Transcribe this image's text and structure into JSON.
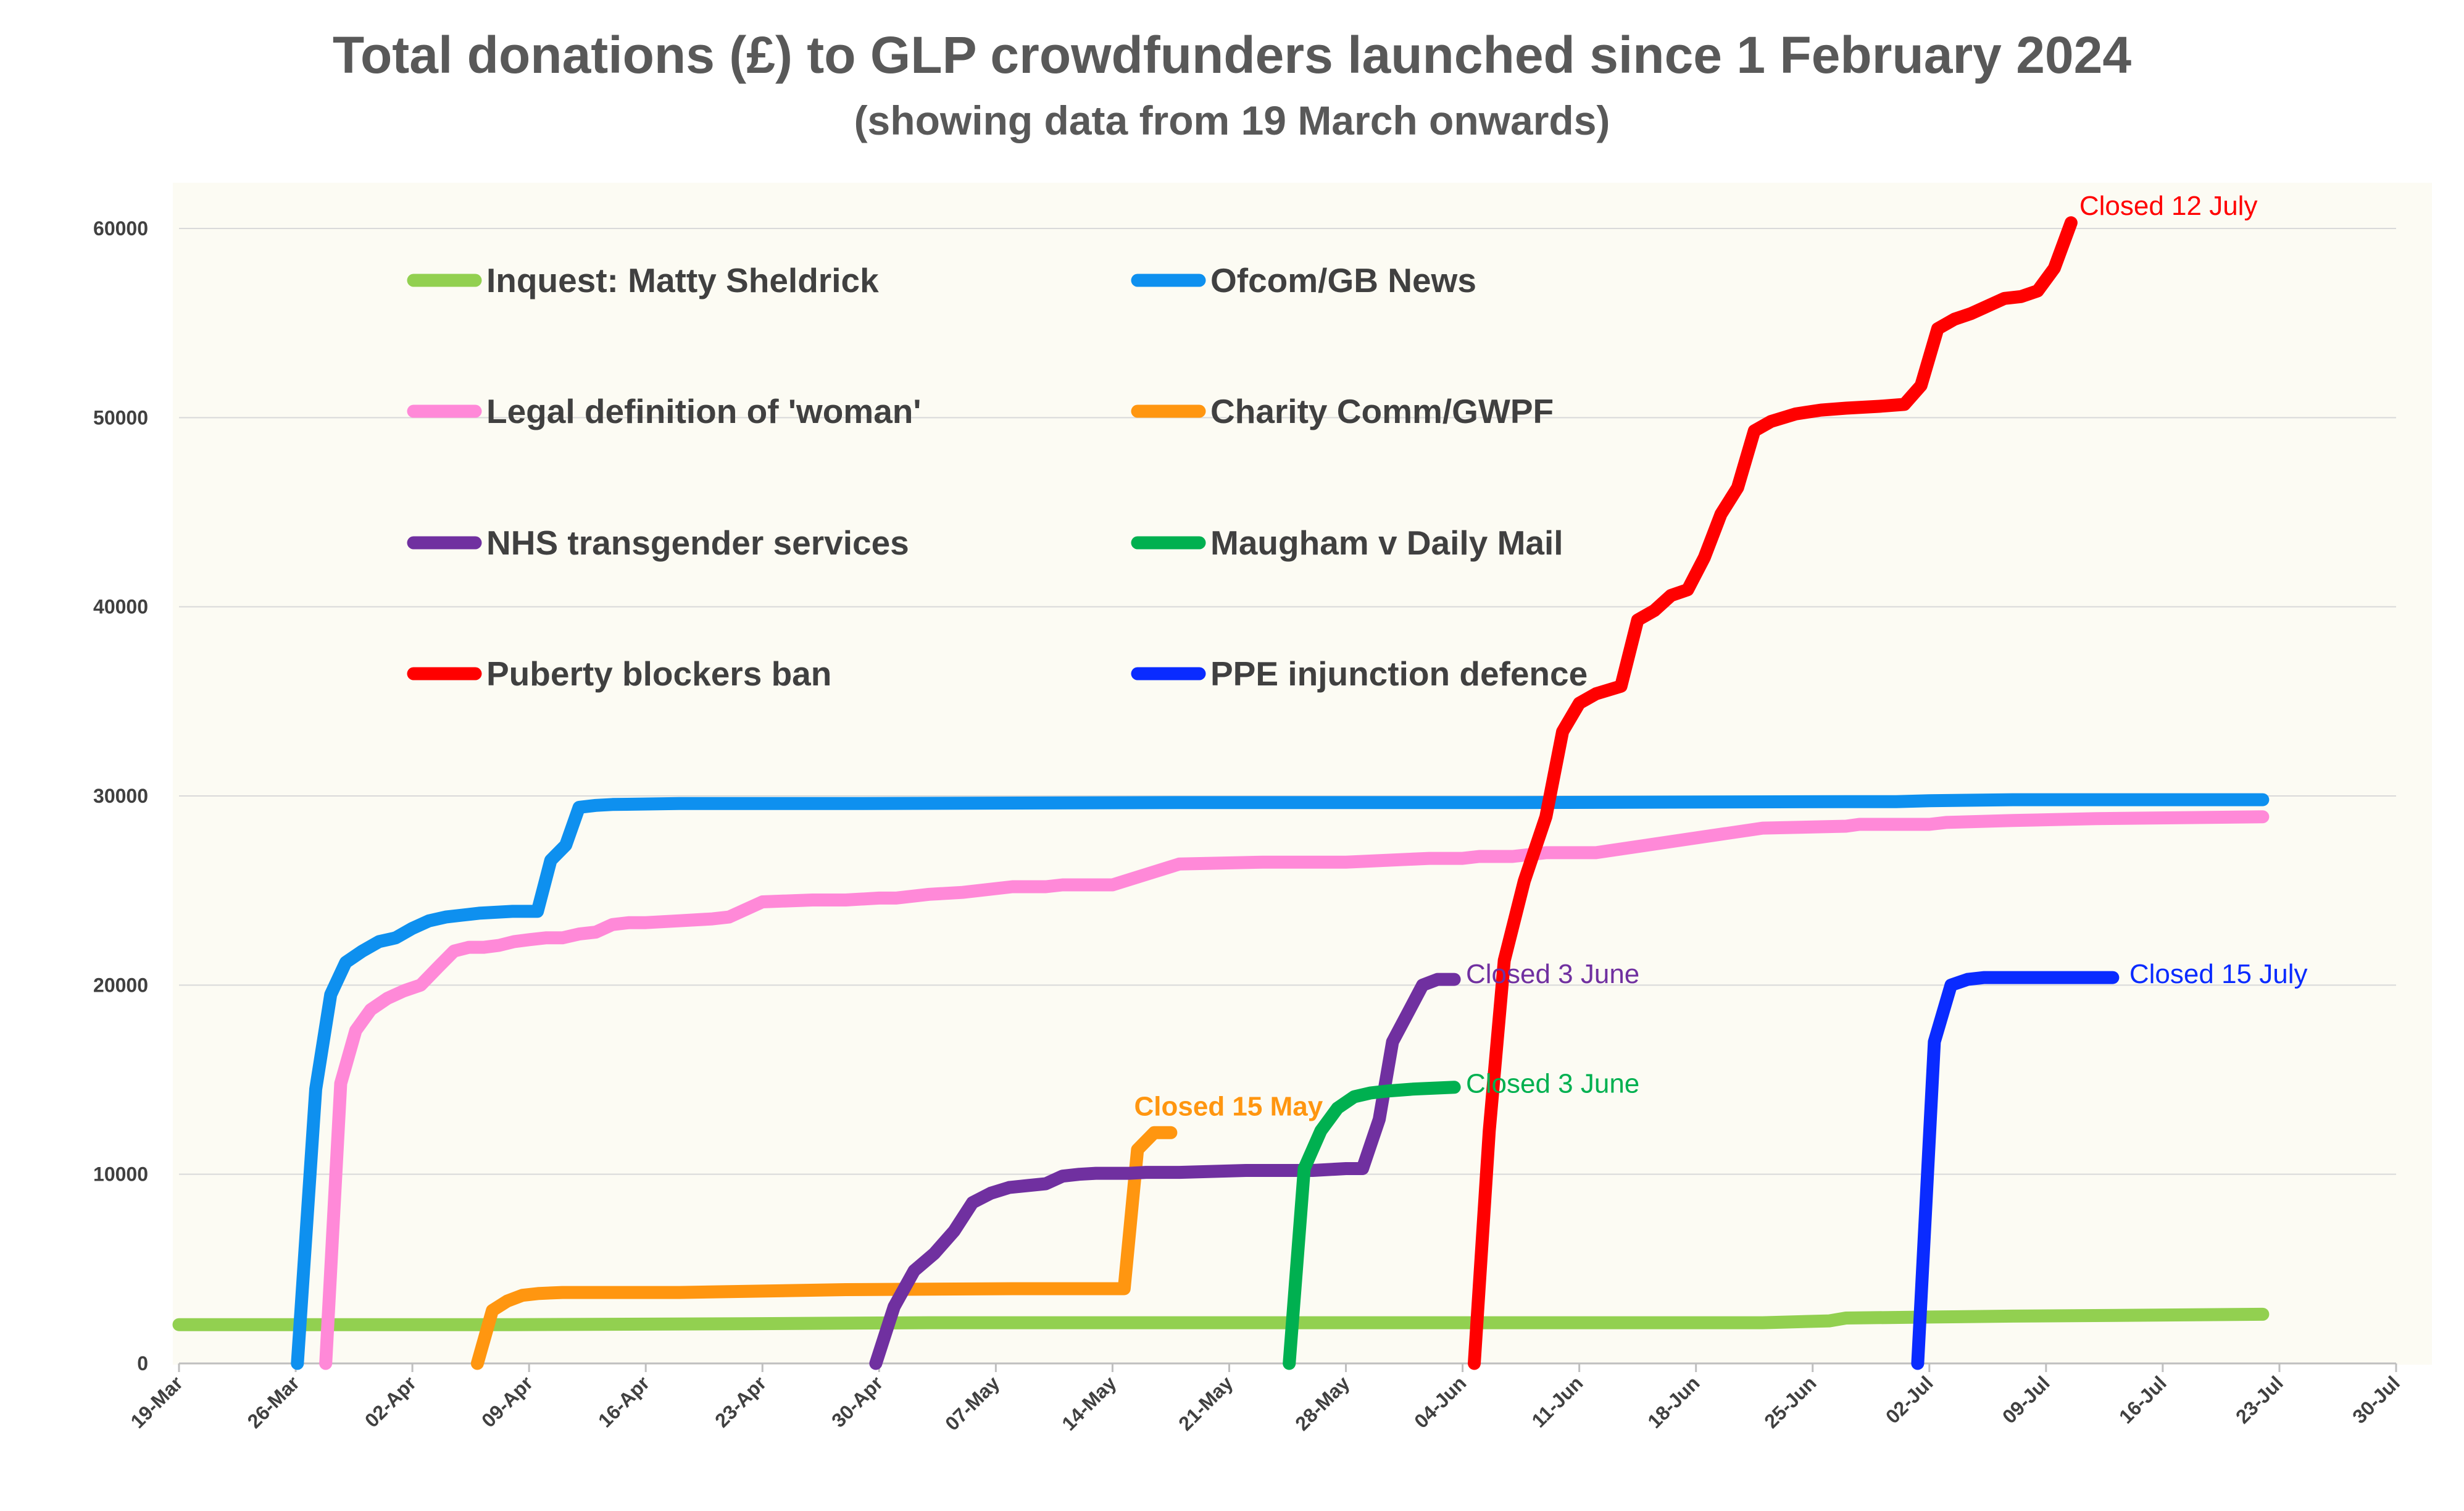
{
  "chart_data": {
    "type": "line",
    "title": "Total donations (£) to GLP crowdfunders launched since 1 February 2024",
    "subtitle": "(showing data from 19 March onwards)",
    "xlabel": "",
    "ylabel": "",
    "x_range_days": [
      0,
      133
    ],
    "ylim": [
      0,
      60000
    ],
    "y_ticks": [
      0,
      10000,
      20000,
      30000,
      40000,
      50000,
      60000
    ],
    "y_tick_labels": [
      "0",
      "10000",
      "20000",
      "30000",
      "40000",
      "50000",
      "60000"
    ],
    "x_ticks_days": [
      0,
      7,
      14,
      21,
      28,
      35,
      42,
      49,
      56,
      63,
      70,
      77,
      84,
      91,
      98,
      105,
      112,
      119,
      126,
      133
    ],
    "x_tick_labels": [
      "19-Mar",
      "26-Mar",
      "02-Apr",
      "09-Apr",
      "16-Apr",
      "23-Apr",
      "30-Apr",
      "07-May",
      "14-May",
      "21-May",
      "28-May",
      "04-Jun",
      "11-Jun",
      "18-Jun",
      "25-Jun",
      "02-Jul",
      "09-Jul",
      "16-Jul",
      "23-Jul",
      "30-Jul"
    ],
    "x_unit": "days since 19-Mar",
    "grid": "horizontal",
    "legend_position": "upper-left, inside plot, two columns",
    "series": [
      {
        "name": "Inquest: Matty Sheldrick",
        "color": "#92d050",
        "x": [
          0,
          20,
          34,
          45,
          60,
          70,
          80,
          95,
          99,
          100,
          105,
          110,
          118,
          125
        ],
        "y": [
          2050,
          2050,
          2100,
          2150,
          2150,
          2150,
          2150,
          2150,
          2250,
          2400,
          2450,
          2500,
          2550,
          2600
        ]
      },
      {
        "name": "Ofcom/GB News",
        "color": "#0e90ef",
        "x": [
          7.1,
          8.2,
          9.1,
          10,
          11,
          12,
          13,
          14,
          15,
          16,
          17,
          18,
          19,
          20,
          21.5,
          22.3,
          23.2,
          24,
          25,
          26,
          30,
          40,
          60,
          80,
          100,
          103,
          105,
          110,
          120,
          125
        ],
        "y": [
          0,
          14500,
          19500,
          21200,
          21800,
          22300,
          22500,
          23000,
          23400,
          23600,
          23700,
          23800,
          23850,
          23900,
          23900,
          26600,
          27400,
          29400,
          29500,
          29550,
          29600,
          29600,
          29650,
          29650,
          29700,
          29700,
          29750,
          29800,
          29800,
          29800
        ]
      },
      {
        "name": "Legal definition of 'woman'",
        "color": "#ff89d8",
        "x": [
          8.8,
          9.7,
          10.6,
          11.5,
          12.5,
          13.5,
          14.5,
          15.6,
          16.5,
          17.4,
          18.3,
          19.2,
          20.1,
          21,
          22,
          23,
          24,
          25,
          26,
          27,
          28,
          30,
          32,
          33,
          35,
          38,
          40,
          42,
          43,
          45,
          47,
          50,
          52,
          53,
          54,
          56,
          60,
          65,
          70,
          75,
          77,
          78,
          80,
          81,
          82,
          85,
          95,
          100,
          100.8,
          101.7,
          103,
          104,
          105,
          106,
          110,
          115,
          125
        ],
        "y": [
          0,
          14800,
          17600,
          18700,
          19300,
          19700,
          20000,
          21000,
          21800,
          22000,
          22000,
          22100,
          22300,
          22400,
          22500,
          22500,
          22700,
          22800,
          23200,
          23300,
          23300,
          23400,
          23500,
          23600,
          24400,
          24500,
          24500,
          24600,
          24600,
          24800,
          24900,
          25200,
          25200,
          25300,
          25300,
          25300,
          26400,
          26500,
          26500,
          26700,
          26700,
          26800,
          26800,
          26900,
          27000,
          27000,
          28300,
          28400,
          28500,
          28500,
          28500,
          28500,
          28500,
          28600,
          28700,
          28800,
          28900
        ]
      },
      {
        "name": "Charity Comm/GWPF",
        "color": "#ff9610",
        "x": [
          17.9,
          18.8,
          19.7,
          20.6,
          21.6,
          23,
          30,
          40,
          50,
          55,
          56.7,
          57.5,
          58.5,
          59.5
        ],
        "y": [
          0,
          2800,
          3300,
          3600,
          3700,
          3750,
          3750,
          3900,
          3950,
          3950,
          3950,
          11300,
          12200,
          12200
        ]
      },
      {
        "name": "NHS transgender services",
        "color": "#7030a0",
        "x": [
          41.8,
          42.9,
          44.1,
          45.3,
          46.5,
          47.6,
          48.7,
          49.8,
          50.9,
          52,
          53,
          54,
          55,
          56,
          57,
          58,
          60,
          64,
          68,
          70,
          71,
          72,
          72.8,
          73.7,
          74.6,
          75.5,
          76.5
        ],
        "y": [
          0,
          3000,
          4900,
          5800,
          7000,
          8500,
          9000,
          9300,
          9400,
          9500,
          9900,
          10000,
          10050,
          10050,
          10050,
          10100,
          10100,
          10200,
          10200,
          10300,
          10300,
          12900,
          17000,
          18500,
          20000,
          20300,
          20300
        ]
      },
      {
        "name": "Maugham v Daily Mail",
        "color": "#00b050",
        "x": [
          66.6,
          67.5,
          68.5,
          69.5,
          70.5,
          71.5,
          72.5,
          74,
          76.5
        ],
        "y": [
          0,
          10300,
          12300,
          13500,
          14100,
          14300,
          14400,
          14500,
          14600
        ]
      },
      {
        "name": "Puberty blockers ban",
        "color": "#ff0000",
        "x": [
          77.7,
          78.6,
          79.5,
          80.7,
          82,
          83,
          84,
          85,
          86.5,
          87.5,
          88.5,
          89.5,
          90.5,
          91.5,
          92.5,
          93.5,
          94.5,
          95.5,
          97,
          98.5,
          100,
          102,
          103.5,
          104.5,
          105.5,
          106.5,
          107.5,
          108.5,
          109.5,
          110.5,
          111.5,
          112.5,
          113.5
        ],
        "y": [
          0,
          12300,
          21300,
          25500,
          28900,
          33400,
          34900,
          35400,
          35800,
          39300,
          39800,
          40600,
          40900,
          42600,
          44900,
          46300,
          49300,
          49800,
          50200,
          50400,
          50500,
          50600,
          50700,
          51700,
          54700,
          55200,
          55500,
          55900,
          56300,
          56400,
          56700,
          57900,
          60300
        ]
      },
      {
        "name": "PPE injunction defence",
        "color": "#0a2bff",
        "x": [
          104.3,
          105.3,
          106.3,
          107.3,
          108.3,
          110,
          112,
          114,
          116
        ],
        "y": [
          0,
          17000,
          20000,
          20300,
          20400,
          20400,
          20400,
          20400,
          20400
        ]
      }
    ],
    "annotations": [
      {
        "text": "Closed 12 July",
        "color": "#ff0000",
        "x": 114,
        "y": 61200
      },
      {
        "text": "Closed 3 June",
        "color": "#7030a0",
        "x": 77.2,
        "y": 20600
      },
      {
        "text": "Closed 15 May",
        "color": "#ff9610",
        "x": 57.3,
        "y": 13600,
        "bold": true
      },
      {
        "text": "Closed 3 June",
        "color": "#00b050",
        "x": 77.2,
        "y": 14800
      },
      {
        "text": "Closed 15 July",
        "color": "#0a2bff",
        "x": 117,
        "y": 20600
      }
    ]
  }
}
